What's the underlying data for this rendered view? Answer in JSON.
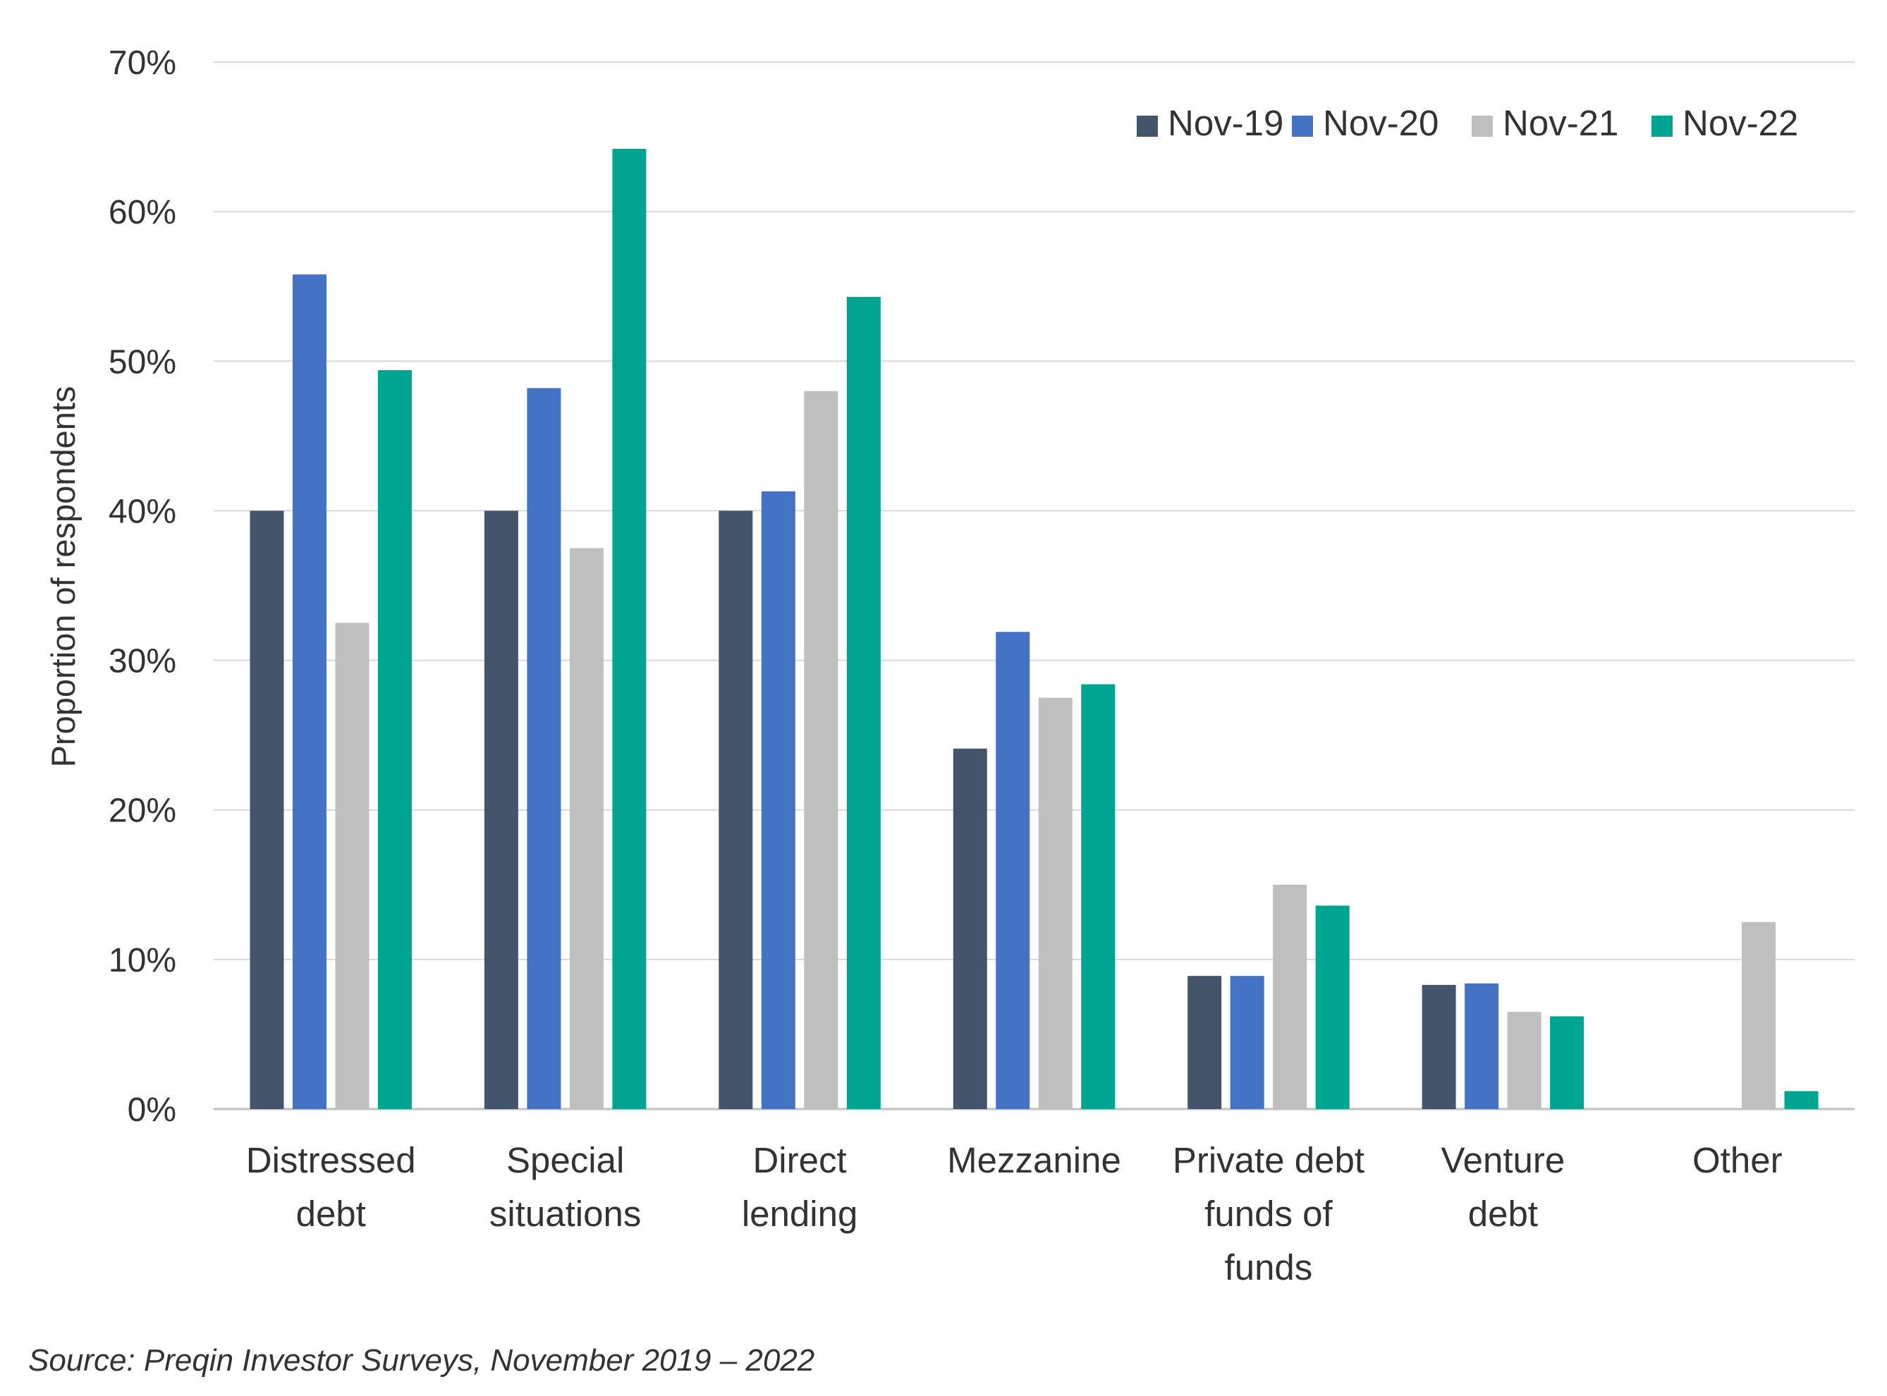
{
  "chart_data": {
    "type": "bar",
    "ylabel": "Proportion of respondents",
    "yticks": [
      "0%",
      "10%",
      "20%",
      "30%",
      "40%",
      "50%",
      "60%",
      "70%"
    ],
    "ylim": [
      0,
      70
    ],
    "grid": true,
    "legend_position": "top-right",
    "categories": [
      [
        "Distressed",
        "debt"
      ],
      [
        "Special",
        "situations"
      ],
      [
        "Direct",
        "lending"
      ],
      [
        "Mezzanine"
      ],
      [
        "Private debt",
        "funds of",
        "funds"
      ],
      [
        "Venture",
        "debt"
      ],
      [
        "Other"
      ]
    ],
    "series": [
      {
        "name": "Nov-19",
        "color": "#44546A",
        "values": [
          40,
          40,
          40,
          24.1,
          8.9,
          8.3,
          null
        ]
      },
      {
        "name": "Nov-20",
        "color": "#4472C4",
        "values": [
          55.8,
          48.2,
          41.3,
          31.9,
          8.9,
          8.4,
          null
        ]
      },
      {
        "name": "Nov-21",
        "color": "#BFBFBF",
        "values": [
          32.5,
          37.5,
          48.0,
          27.5,
          15.0,
          6.5,
          12.5
        ]
      },
      {
        "name": "Nov-22",
        "color": "#00A591",
        "values": [
          49.4,
          64.2,
          54.3,
          28.4,
          13.6,
          6.2,
          1.2
        ]
      }
    ]
  },
  "source": "Source: Preqin Investor Surveys, November 2019 – 2022"
}
